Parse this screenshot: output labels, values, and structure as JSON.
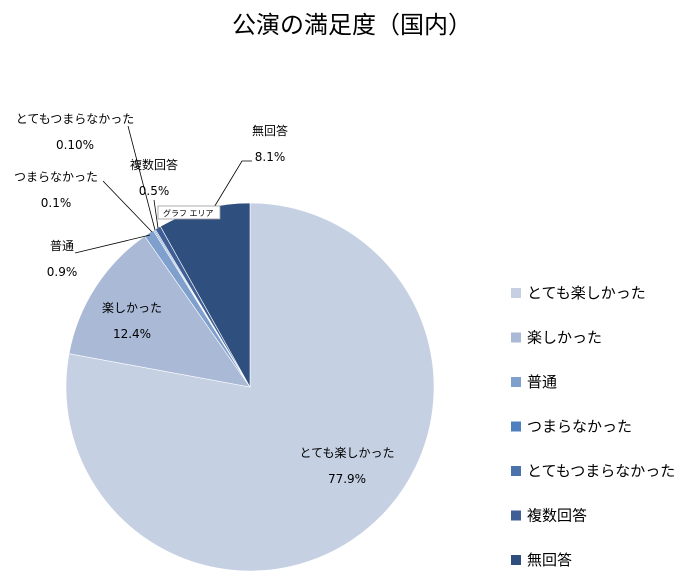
{
  "chart_data": {
    "type": "pie",
    "title": "公演の満足度（国内）",
    "categories": [
      "とても楽しかった",
      "楽しかった",
      "普通",
      "つまらなかった",
      "とてもつまらなかった",
      "複数回答",
      "無回答"
    ],
    "values": [
      77.9,
      12.4,
      0.9,
      0.1,
      0.1,
      0.5,
      8.1
    ],
    "data_labels": [
      "77.9%",
      "12.4%",
      "0.9%",
      "0.1%",
      "0.10%",
      "0.5%",
      "8.1%"
    ],
    "colors": [
      "#c5d0e3",
      "#a9b9d6",
      "#7f9fcc",
      "#4f7fbf",
      "#4a72ad",
      "#3f5f96",
      "#2f4f7f"
    ],
    "legend_position": "right",
    "start_angle_deg": 0,
    "direction": "clockwise"
  },
  "tooltip": {
    "text": "グラフ エリア"
  }
}
